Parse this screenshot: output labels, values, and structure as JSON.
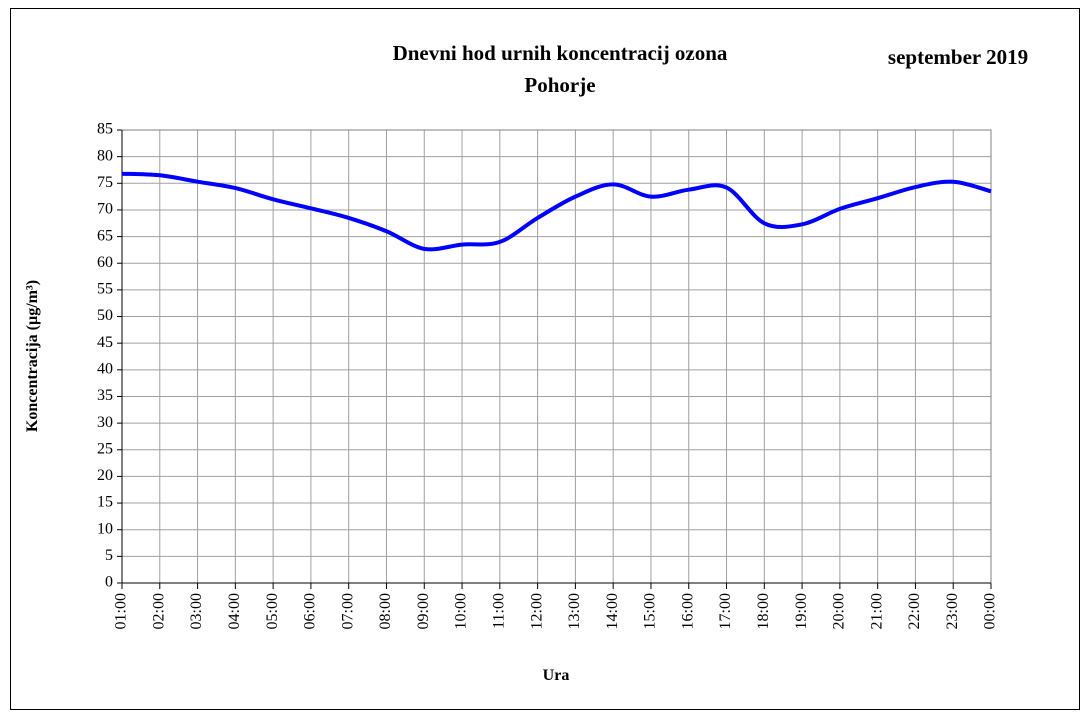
{
  "chart_data": {
    "type": "line",
    "title": "Dnevni hod urnih  koncentracij ozona",
    "subtitle": "Pohorje",
    "annotation": "september 2019",
    "x_label": "Ura",
    "y_label": "Koncentracija  (µg/m³)",
    "categories": [
      "01:00",
      "02:00",
      "03:00",
      "04:00",
      "05:00",
      "06:00",
      "07:00",
      "08:00",
      "09:00",
      "10:00",
      "11:00",
      "12:00",
      "13:00",
      "14:00",
      "15:00",
      "16:00",
      "17:00",
      "18:00",
      "19:00",
      "20:00",
      "21:00",
      "22:00",
      "23:00",
      "00:00"
    ],
    "series": [
      {
        "color": "#0000ff",
        "values": [
          76.8,
          76.5,
          75.3,
          74.1,
          72.0,
          70.3,
          68.5,
          66.0,
          62.7,
          63.5,
          64.0,
          68.5,
          72.5,
          74.8,
          72.5,
          73.8,
          74.2,
          67.5,
          67.3,
          70.2,
          72.2,
          74.3,
          75.3,
          73.5
        ]
      }
    ],
    "ylim": [
      0,
      85
    ],
    "yticks": [
      0,
      5,
      10,
      15,
      20,
      25,
      30,
      35,
      40,
      45,
      50,
      55,
      60,
      65,
      70,
      75,
      80,
      85
    ],
    "grid": true
  }
}
